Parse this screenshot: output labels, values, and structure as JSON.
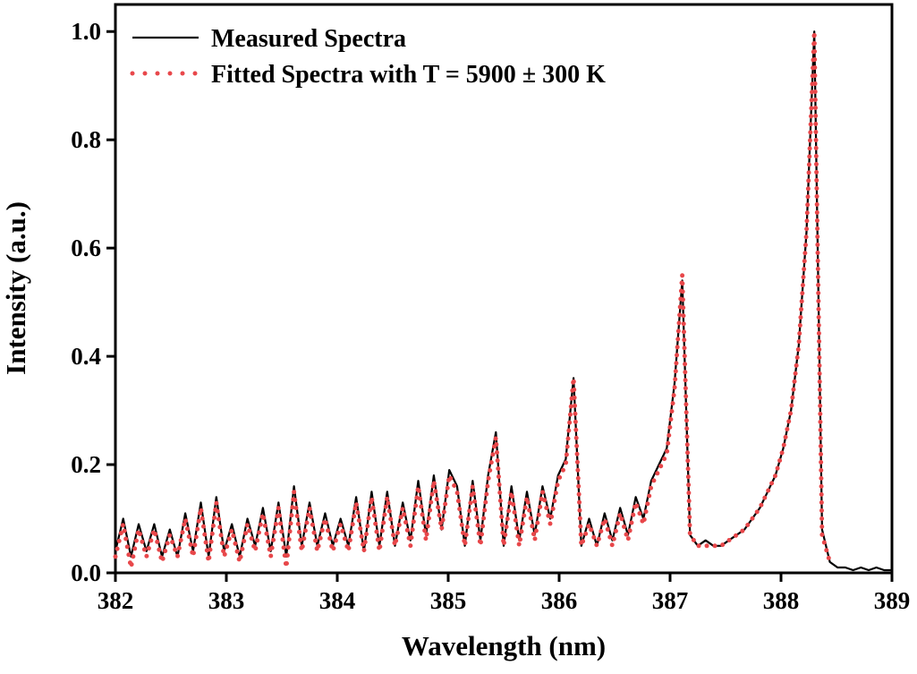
{
  "chart_data": {
    "type": "line",
    "x_label": "Wavelength (nm)",
    "y_label": "Intensity (a.u.)",
    "x": [
      382.0,
      382.07,
      382.14,
      382.21,
      382.28,
      382.35,
      382.42,
      382.49,
      382.56,
      382.63,
      382.7,
      382.77,
      382.84,
      382.91,
      382.98,
      383.05,
      383.12,
      383.19,
      383.26,
      383.33,
      383.4,
      383.47,
      383.54,
      383.61,
      383.68,
      383.75,
      383.82,
      383.89,
      383.96,
      384.03,
      384.1,
      384.17,
      384.24,
      384.31,
      384.38,
      384.45,
      384.52,
      384.59,
      384.66,
      384.73,
      384.8,
      384.87,
      384.94,
      385.01,
      385.08,
      385.15,
      385.22,
      385.29,
      385.36,
      385.43,
      385.5,
      385.57,
      385.64,
      385.71,
      385.78,
      385.85,
      385.92,
      385.99,
      386.06,
      386.13,
      386.2,
      386.27,
      386.34,
      386.41,
      386.48,
      386.55,
      386.62,
      386.69,
      386.76,
      386.83,
      386.9,
      386.97,
      387.04,
      387.11,
      387.18,
      387.25,
      387.32,
      387.39,
      387.46,
      387.53,
      387.6,
      387.67,
      387.74,
      387.81,
      387.88,
      387.95,
      388.02,
      388.09,
      388.16,
      388.23,
      388.3,
      388.37,
      388.44,
      388.51,
      388.58,
      388.65,
      388.72,
      388.79,
      388.86,
      388.93,
      389.0
    ],
    "series": [
      {
        "name": "Measured Spectra",
        "color": "#000000",
        "style": "solid",
        "values": [
          0.04,
          0.1,
          0.03,
          0.09,
          0.04,
          0.09,
          0.03,
          0.08,
          0.03,
          0.11,
          0.04,
          0.13,
          0.03,
          0.14,
          0.04,
          0.09,
          0.03,
          0.1,
          0.05,
          0.12,
          0.04,
          0.13,
          0.03,
          0.16,
          0.05,
          0.13,
          0.05,
          0.11,
          0.05,
          0.1,
          0.05,
          0.14,
          0.04,
          0.15,
          0.05,
          0.15,
          0.05,
          0.13,
          0.06,
          0.17,
          0.07,
          0.18,
          0.08,
          0.19,
          0.16,
          0.05,
          0.17,
          0.06,
          0.18,
          0.26,
          0.05,
          0.16,
          0.06,
          0.15,
          0.07,
          0.16,
          0.1,
          0.18,
          0.21,
          0.36,
          0.05,
          0.1,
          0.05,
          0.11,
          0.06,
          0.12,
          0.07,
          0.14,
          0.1,
          0.17,
          0.2,
          0.23,
          0.35,
          0.54,
          0.07,
          0.05,
          0.06,
          0.05,
          0.05,
          0.06,
          0.07,
          0.08,
          0.1,
          0.12,
          0.15,
          0.18,
          0.23,
          0.3,
          0.42,
          0.63,
          1.0,
          0.08,
          0.02,
          0.01,
          0.01,
          0.005,
          0.01,
          0.005,
          0.01,
          0.005,
          0.005
        ]
      },
      {
        "name": "Fitted Spectra with T = 5900 ± 300 K",
        "color": "#e8474a",
        "style": "dotted",
        "values": [
          0.03,
          0.09,
          0.01,
          0.08,
          0.03,
          0.08,
          0.02,
          0.07,
          0.03,
          0.1,
          0.03,
          0.12,
          0.02,
          0.13,
          0.03,
          0.08,
          0.02,
          0.09,
          0.04,
          0.11,
          0.03,
          0.12,
          0.01,
          0.15,
          0.04,
          0.12,
          0.04,
          0.1,
          0.04,
          0.09,
          0.04,
          0.13,
          0.04,
          0.14,
          0.04,
          0.14,
          0.05,
          0.12,
          0.05,
          0.16,
          0.06,
          0.17,
          0.08,
          0.18,
          0.15,
          0.05,
          0.16,
          0.05,
          0.17,
          0.25,
          0.05,
          0.15,
          0.05,
          0.14,
          0.06,
          0.15,
          0.09,
          0.17,
          0.2,
          0.36,
          0.05,
          0.09,
          0.05,
          0.1,
          0.05,
          0.11,
          0.06,
          0.13,
          0.09,
          0.16,
          0.19,
          0.22,
          0.34,
          0.55,
          0.07,
          0.05,
          0.05,
          0.05,
          0.05,
          0.06,
          0.07,
          0.08,
          0.1,
          0.12,
          0.15,
          0.18,
          0.23,
          0.3,
          0.42,
          0.63,
          1.0,
          0.07,
          0.02,
          null,
          null,
          null,
          null,
          null,
          null,
          null,
          null
        ]
      }
    ],
    "xlim": [
      382,
      389
    ],
    "xticks": [
      382,
      383,
      384,
      385,
      386,
      387,
      388,
      389
    ],
    "ylim": [
      0,
      1.05
    ],
    "yticks": [
      {
        "value": 0,
        "label": "0.0"
      },
      0.2,
      0.4,
      0.6,
      0.8,
      {
        "value": 1,
        "label": "1.0"
      }
    ],
    "legend": "upper left"
  }
}
